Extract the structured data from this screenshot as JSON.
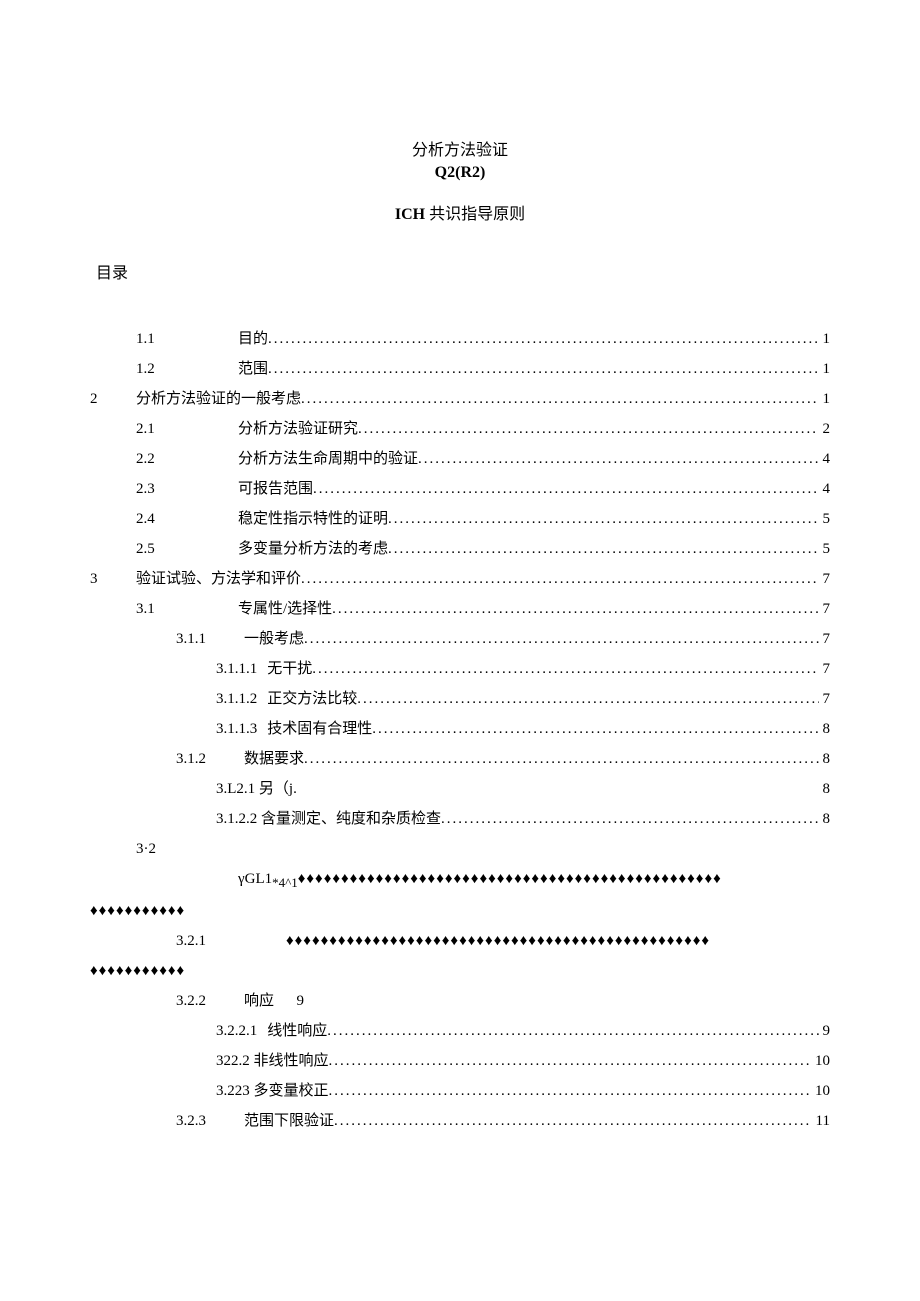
{
  "header": {
    "title_main": "分析方法验证",
    "title_code": "Q2(R2)",
    "subtitle_prefix": "ICH",
    "subtitle_rest": " 共识指导原则"
  },
  "toc_label": "目录",
  "dots": "...................................................................................................",
  "diamonds_long": "♦♦♦♦♦♦♦♦♦♦♦♦♦♦♦♦♦♦♦♦♦♦♦♦♦♦♦♦♦♦♦♦♦♦♦♦♦♦♦♦♦♦♦♦♦♦♦♦♦",
  "diamonds_short": "♦♦♦♦♦♦♦♦♦♦♦",
  "toc": [
    {
      "level": 2,
      "num": "1.1",
      "text": "目的",
      "page": "1",
      "dots": true
    },
    {
      "level": 2,
      "num": "1.2",
      "text": "范围",
      "page": "1",
      "dots": true
    },
    {
      "level": 1,
      "num": "2",
      "text": "分析方法验证的一般考虑",
      "page": "1",
      "dots": true
    },
    {
      "level": 2,
      "num": "2.1",
      "text": "分析方法验证研究",
      "page": "2",
      "dots": true
    },
    {
      "level": 2,
      "num": "2.2",
      "text": "分析方法生命周期中的验证",
      "page": "4",
      "dots": true
    },
    {
      "level": 2,
      "num": "2.3",
      "text": "可报告范围",
      "page": "4",
      "dots": true
    },
    {
      "level": 2,
      "num": "2.4",
      "text": "稳定性指示特性的证明",
      "page": "5",
      "dots": true
    },
    {
      "level": 2,
      "num": "2.5",
      "text": "多变量分析方法的考虑",
      "page": "5",
      "dots": true
    },
    {
      "level": 1,
      "num": "3",
      "text": "验证试验、方法学和评价",
      "page": "7",
      "dots": true
    },
    {
      "level": 2,
      "num": "3.1",
      "text": "专属性/选择性",
      "page": "7",
      "dots": true
    },
    {
      "level": 3,
      "num": "3.1.1",
      "text": "一般考虑",
      "page": "7",
      "dots": true
    },
    {
      "level": 4,
      "num": "3.1.1.1",
      "text": "无干扰",
      "page": "7",
      "dots": true
    },
    {
      "level": 4,
      "num": "3.1.1.2",
      "text": "正交方法比较",
      "page": "7",
      "dots": true
    },
    {
      "level": 4,
      "num": "3.1.1.3",
      "text": "技术固有合理性",
      "page": "8",
      "dots": true
    },
    {
      "level": 3,
      "num": "3.1.2",
      "text": "数据要求",
      "page": "8",
      "dots": true
    },
    {
      "level": 4,
      "num": "",
      "text_raw": "3.L2.1 另（j.",
      "page": "8",
      "dots": false
    },
    {
      "level": 4,
      "num": "",
      "text_raw": "3.1.2.2 含量测定、纯度和杂质检查",
      "page": "8",
      "dots": true
    },
    {
      "level": "32_special",
      "num": "3·2",
      "text_raw": "γGL1",
      "sub_text": "*4^1",
      "diamonds": true
    },
    {
      "level": "321_special",
      "num": "3.2.1",
      "diamonds": true
    },
    {
      "level": 3,
      "num": "3.2.2",
      "text": "响应",
      "page_inline": "9",
      "dots": false
    },
    {
      "level": 4,
      "num": "3.2.2.1",
      "text": "线性响应",
      "page": "9",
      "dots": true
    },
    {
      "level": 4,
      "num": "",
      "text_raw": "322.2 非线性响应",
      "page": "10",
      "dots": true
    },
    {
      "level": 4,
      "num": "",
      "text_raw": "3.223 多变量校正",
      "page": "10",
      "dots": true
    },
    {
      "level": 3,
      "num": "3.2.3",
      "text": "范围下限验证",
      "page": "11",
      "dots": true
    }
  ]
}
